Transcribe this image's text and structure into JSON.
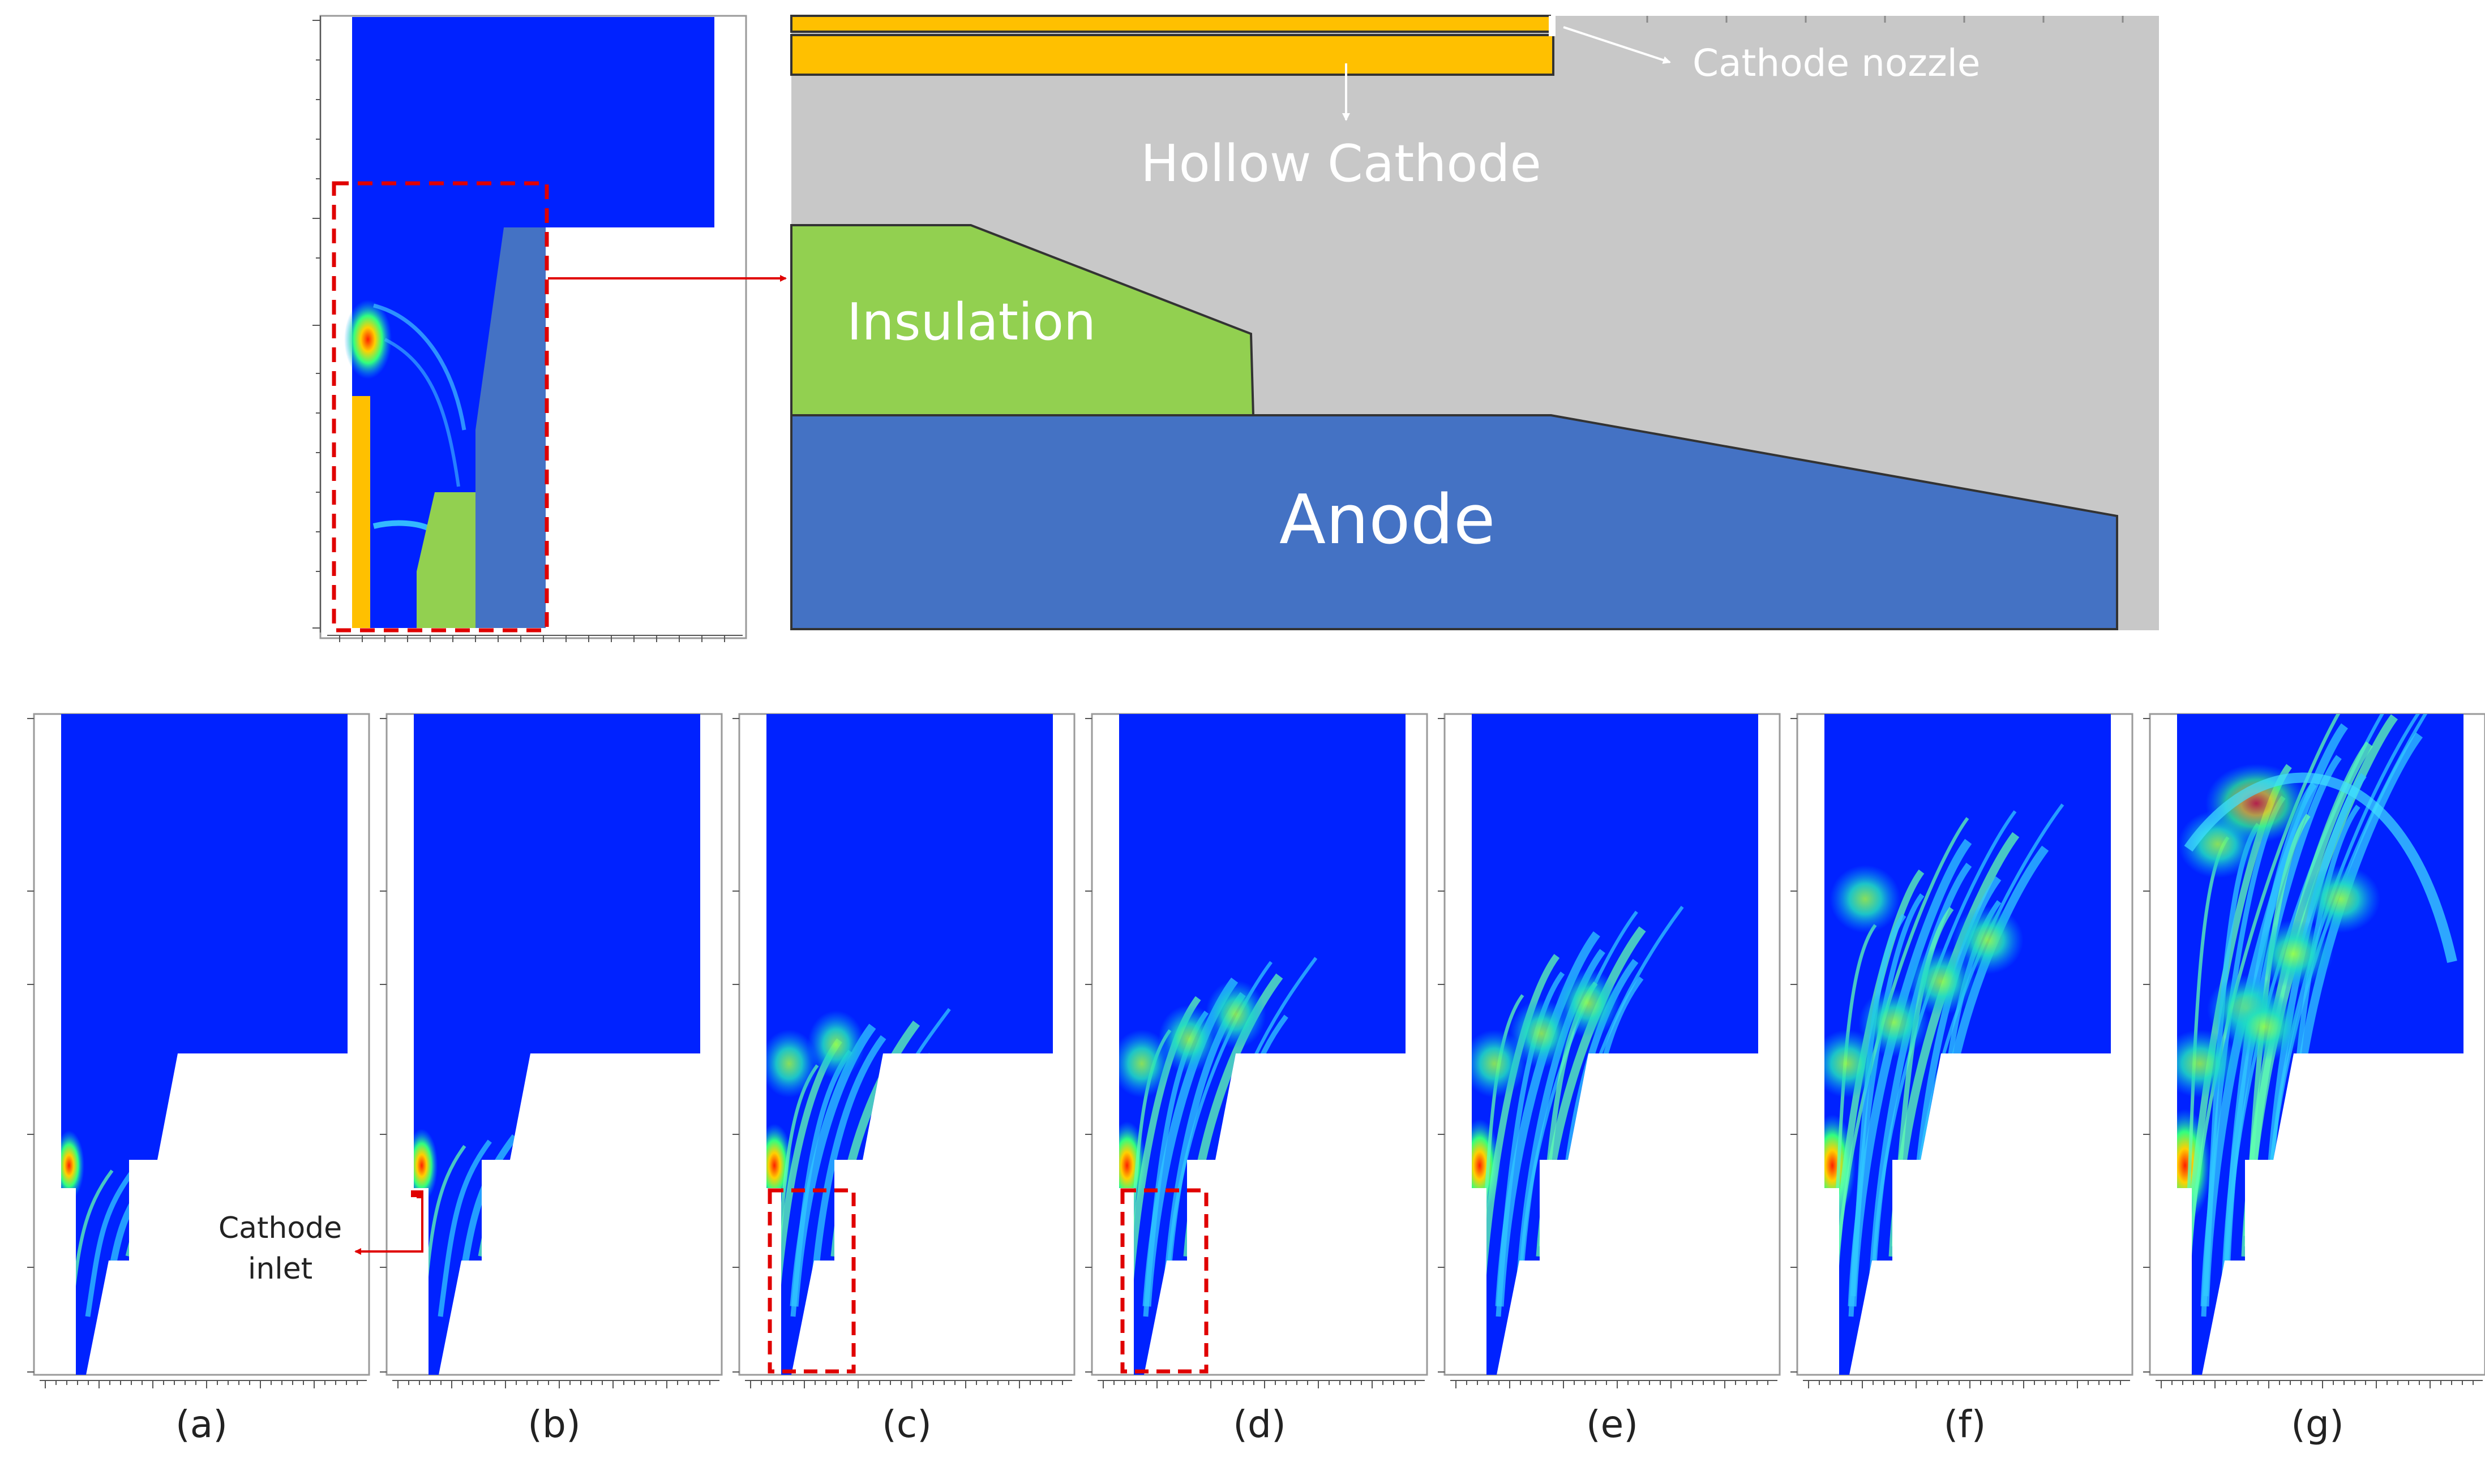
{
  "schematic": {
    "labels": {
      "cathode_nozzle": "Cathode nozzle",
      "hollow_cathode": "Hollow Cathode",
      "insulation": "Insulation",
      "anode": "Anode"
    },
    "colors": {
      "cathode": "#FFC000",
      "insulation": "#92D050",
      "anode": "#4472C4",
      "fluid": "#C8C8C8",
      "field_background": "#0022FF",
      "highlight": "#E00000"
    }
  },
  "annotations": {
    "cathode_inlet": [
      "Cathode",
      "inlet"
    ]
  },
  "panels": [
    {
      "label": "(a)"
    },
    {
      "label": "(b)"
    },
    {
      "label": "(c)"
    },
    {
      "label": "(d)"
    },
    {
      "label": "(e)"
    },
    {
      "label": "(f)"
    },
    {
      "label": "(g)"
    }
  ]
}
